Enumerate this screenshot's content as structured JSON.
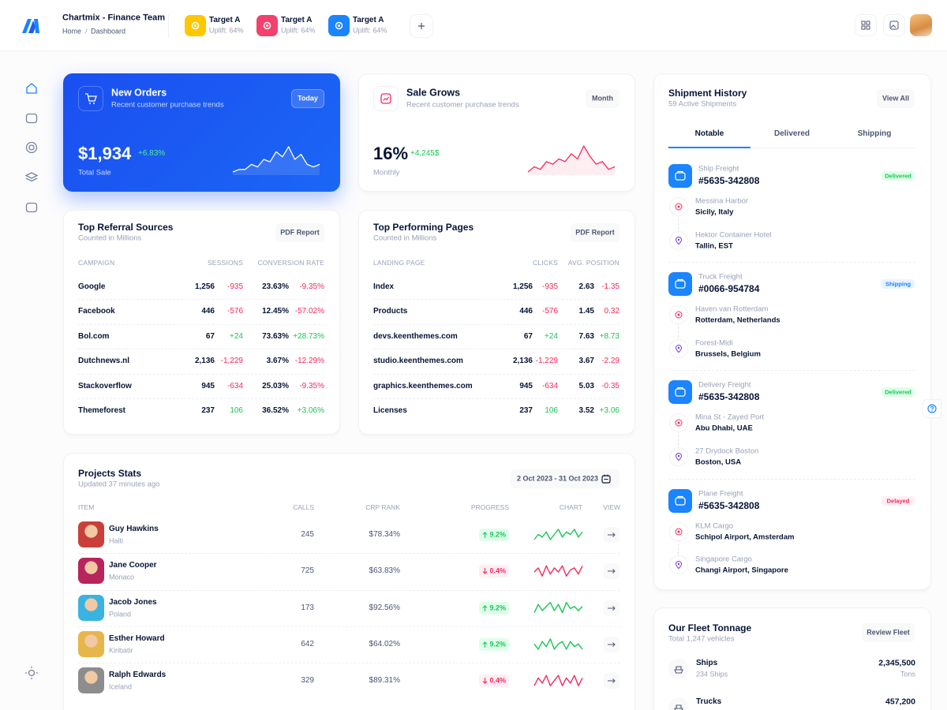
{
  "header": {
    "brand": "Chartmix - Finance Team",
    "breadcrumb": [
      "Home",
      "Dashboard"
    ],
    "breadcrumb_separator": "/",
    "targets": [
      {
        "title": "Target A",
        "subtitle": "Uplift: 64%",
        "color": "#ffc700"
      },
      {
        "title": "Target A",
        "subtitle": "Uplift: 64%",
        "color": "#f1416c"
      },
      {
        "title": "Target A",
        "subtitle": "Uplift: 64%",
        "color": "#1b84ff"
      }
    ]
  },
  "new_orders": {
    "title": "New Orders",
    "subtitle": "Recent customer purchase trends",
    "button": "Today",
    "value": "$1,934",
    "change": "+6.83%",
    "label": "Total Sale",
    "sparkline": [
      3,
      4,
      4,
      6,
      5,
      8,
      7,
      11,
      9,
      13,
      8,
      10,
      6,
      5,
      6
    ]
  },
  "sale_grows": {
    "title": "Sale Grows",
    "subtitle": "Recent customer purchase trends",
    "button": "Month",
    "value": "16%",
    "change": "+4,245$",
    "label": "Monthly",
    "sparkline": [
      3,
      5,
      4,
      7,
      6,
      8,
      7,
      10,
      8,
      13,
      9,
      6,
      7,
      4,
      5
    ]
  },
  "referral": {
    "title": "Top Referral Sources",
    "subtitle": "Counted in Millions",
    "button": "PDF Report",
    "columns": [
      "CAMPAIGN",
      "SESSIONS",
      "CONVERSION RATE"
    ],
    "rows": [
      {
        "name": "Google",
        "value_a": "1,256",
        "change_a": "-935",
        "trend_a": "down",
        "value_b": "23.63%",
        "change_b": "-9.35%",
        "trend_b": "down"
      },
      {
        "name": "Facebook",
        "value_a": "446",
        "change_a": "-576",
        "trend_a": "down",
        "value_b": "12.45%",
        "change_b": "-57.02%",
        "trend_b": "down"
      },
      {
        "name": "Bol.com",
        "value_a": "67",
        "change_a": "+24",
        "trend_a": "up",
        "value_b": "73.63%",
        "change_b": "+28.73%",
        "trend_b": "up"
      },
      {
        "name": "Dutchnews.nl",
        "value_a": "2,136",
        "change_a": "-1,229",
        "trend_a": "down",
        "value_b": "3.67%",
        "change_b": "-12.29%",
        "trend_b": "down"
      },
      {
        "name": "Stackoverflow",
        "value_a": "945",
        "change_a": "-634",
        "trend_a": "down",
        "value_b": "25.03%",
        "change_b": "-9.35%",
        "trend_b": "down"
      },
      {
        "name": "Themeforest",
        "value_a": "237",
        "change_a": "106",
        "trend_a": "up",
        "value_b": "36.52%",
        "change_b": "+3.06%",
        "trend_b": "up"
      }
    ]
  },
  "pages": {
    "title": "Top Performing Pages",
    "subtitle": "Counted in Millions",
    "button": "PDF Report",
    "columns": [
      "LANDING PAGE",
      "CLICKS",
      "AVG. POSITION"
    ],
    "rows": [
      {
        "name": "Index",
        "value_a": "1,256",
        "change_a": "-935",
        "trend_a": "down",
        "value_b": "2.63",
        "change_b": "-1.35",
        "trend_b": "down"
      },
      {
        "name": "Products",
        "value_a": "446",
        "change_a": "-576",
        "trend_a": "down",
        "value_b": "1.45",
        "change_b": "0.32",
        "trend_b": "down"
      },
      {
        "name": "devs.keenthemes.com",
        "value_a": "67",
        "change_a": "+24",
        "trend_a": "up",
        "value_b": "7.63",
        "change_b": "+8.73",
        "trend_b": "up"
      },
      {
        "name": "studio.keenthemes.com",
        "value_a": "2,136",
        "change_a": "-1,229",
        "trend_a": "down",
        "value_b": "3.67",
        "change_b": "-2.29",
        "trend_b": "down"
      },
      {
        "name": "graphics.keenthemes.com",
        "value_a": "945",
        "change_a": "-634",
        "trend_a": "down",
        "value_b": "5.03",
        "change_b": "-0.35",
        "trend_b": "down"
      },
      {
        "name": "Licenses",
        "value_a": "237",
        "change_a": "106",
        "trend_a": "up",
        "value_b": "3.52",
        "change_b": "+3.06",
        "trend_b": "up"
      }
    ]
  },
  "projects": {
    "title": "Projects Stats",
    "subtitle": "Updated 37 minutes ago",
    "date_range": "2 Oct 2023 - 31 Oct 2023",
    "columns": [
      "ITEM",
      "CALLS",
      "CRP RANK",
      "PROGRESS",
      "CHART",
      "VIEW"
    ],
    "rows": [
      {
        "name": "Guy Hawkins",
        "location": "Haiti",
        "calls": "245",
        "rank": "$78.34%",
        "progress": "9.2%",
        "trend": "up",
        "avatar_color": "#c9403a",
        "sparkline": [
          4,
          6,
          5,
          7,
          4,
          6,
          8,
          5,
          7,
          6,
          8,
          5,
          7
        ]
      },
      {
        "name": "Jane Cooper",
        "location": "Monaco",
        "calls": "725",
        "rank": "$63.83%",
        "progress": "0.4%",
        "trend": "down",
        "avatar_color": "#b8245c",
        "sparkline": [
          5,
          7,
          3,
          8,
          4,
          7,
          5,
          8,
          3,
          6,
          7,
          4,
          8
        ]
      },
      {
        "name": "Jacob Jones",
        "location": "Poland",
        "calls": "173",
        "rank": "$92.56%",
        "progress": "9.2%",
        "trend": "up",
        "avatar_color": "#3bb3e0",
        "sparkline": [
          3,
          7,
          4,
          6,
          8,
          4,
          7,
          3,
          8,
          5,
          6,
          4,
          6
        ]
      },
      {
        "name": "Esther Howard",
        "location": "Kiribatir",
        "calls": "642",
        "rank": "$64.02%",
        "progress": "9.2%",
        "trend": "up",
        "avatar_color": "#e7b64a",
        "sparkline": [
          6,
          4,
          7,
          5,
          8,
          4,
          6,
          7,
          4,
          7,
          5,
          6,
          4
        ]
      },
      {
        "name": "Ralph Edwards",
        "location": "Iceland",
        "calls": "329",
        "rank": "$89.31%",
        "progress": "0.4%",
        "trend": "down",
        "avatar_color": "#8d8d8d",
        "sparkline": [
          4,
          7,
          5,
          8,
          4,
          6,
          8,
          4,
          7,
          5,
          8,
          4,
          7
        ]
      }
    ]
  },
  "shipments": {
    "title": "Shipment History",
    "subtitle": "59 Active Shipments",
    "button": "View All",
    "tabs": [
      "Notable",
      "Delivered",
      "Shipping"
    ],
    "active_tab": 0,
    "items": [
      {
        "type": "Ship Freight",
        "id": "#5635-342808",
        "status": "Delivered",
        "status_color": "#17c653",
        "status_bg": "#dfffea",
        "stops": [
          {
            "name": "Messina Harbor",
            "place": "Sicily, Italy"
          },
          {
            "name": "Hektor Container Hotel",
            "place": "Tallin, EST"
          }
        ]
      },
      {
        "type": "Truck Freight",
        "id": "#0066-954784",
        "status": "Shipping",
        "status_color": "#1b84ff",
        "status_bg": "#e9f3ff",
        "stops": [
          {
            "name": "Haven van Rotterdam",
            "place": "Rotterdam, Netherlands"
          },
          {
            "name": "Forest-Midi",
            "place": "Brussels, Belgium"
          }
        ]
      },
      {
        "type": "Delivery Freight",
        "id": "#5635-342808",
        "status": "Delivered",
        "status_color": "#17c653",
        "status_bg": "#dfffea",
        "stops": [
          {
            "name": "Mina St - Zayed Port",
            "place": "Abu Dhabi, UAE"
          },
          {
            "name": "27 Drydock Boston",
            "place": "Boston, USA"
          }
        ]
      },
      {
        "type": "Plane Freight",
        "id": "#5635-342808",
        "status": "Delayed",
        "status_color": "#f8285a",
        "status_bg": "#ffeef3",
        "stops": [
          {
            "name": "KLM Cargo",
            "place": "Schipol Airport, Amsterdam"
          },
          {
            "name": "Singapore Cargo",
            "place": "Changi Airport, Singapore"
          }
        ]
      }
    ]
  },
  "fleet": {
    "title": "Our Fleet Tonnage",
    "subtitle": "Total 1,247 vehicles",
    "button": "Review Fleet",
    "items": [
      {
        "name": "Ships",
        "detail": "234 Ships",
        "value": "2,345,500",
        "unit": "Tons"
      },
      {
        "name": "Trucks",
        "value": "457,200"
      }
    ]
  }
}
